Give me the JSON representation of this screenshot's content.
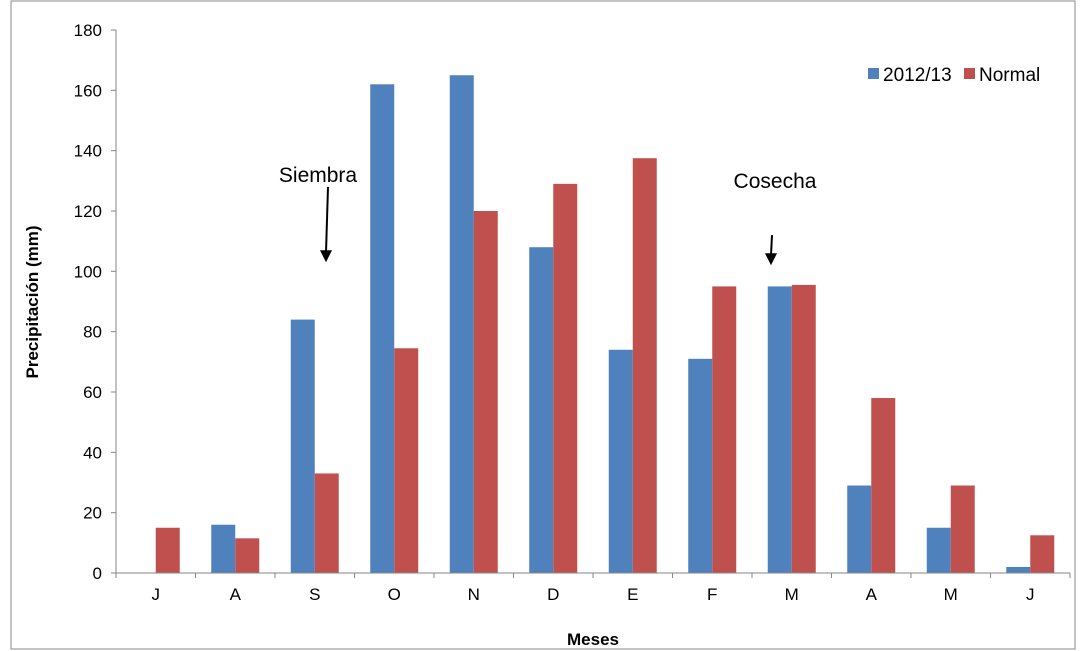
{
  "chart_data": {
    "type": "bar",
    "categories": [
      "J",
      "A",
      "S",
      "O",
      "N",
      "D",
      "E",
      "F",
      "M",
      "A",
      "M",
      "J"
    ],
    "series": [
      {
        "name": "2012/13",
        "color": "#4F81BD",
        "values": [
          0,
          16,
          84,
          162,
          165,
          108,
          74,
          71,
          95,
          29,
          15,
          2
        ]
      },
      {
        "name": "Normal",
        "color": "#C0504D",
        "values": [
          15,
          11.5,
          33,
          74.5,
          120,
          129,
          137.5,
          95,
          95.5,
          58,
          29,
          12.5
        ]
      }
    ],
    "title": "",
    "xlabel": "Meses",
    "ylabel": "Precipitación (mm)",
    "ylim": [
      0,
      180
    ],
    "yticks": [
      0,
      20,
      40,
      60,
      80,
      100,
      120,
      140,
      160,
      180
    ],
    "grid": false,
    "legend_position": "top-right",
    "annotations": [
      {
        "text": "Siembra",
        "category_index": 2,
        "arrow_from": 128,
        "arrow_to": 103
      },
      {
        "text": "Cosecha",
        "category_index": 8,
        "arrow_from": 112,
        "arrow_to": 102
      }
    ]
  }
}
